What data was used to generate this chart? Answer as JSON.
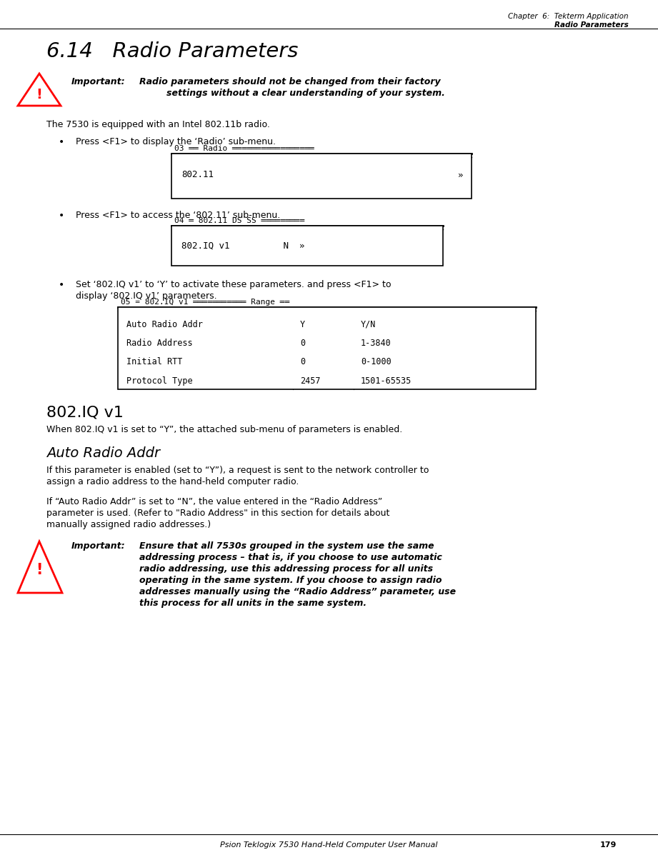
{
  "page_header_line1": "Chapter  6:  Tekterm Application",
  "page_header_line2": "Radio Parameters",
  "section_title": "6.14   Radio Parameters",
  "important1_label": "Important:",
  "important1_text1": "Radio parameters should not be changed from their factory",
  "important1_text2": "settings without a clear understanding of your system.",
  "body1": "The 7530 is equipped with an Intel 802.11b radio.",
  "bullet1": "Press <F1> to display the ‘Radio’ sub-menu.",
  "bullet2": "Press <F1> to access the ‘802.11’ sub-menu.",
  "bullet3_line1": "Set ‘802.IQ v1’ to ‘Y’ to activate these parameters. and press <F1> to",
  "bullet3_line2": "display ‘802.IQ v1’ parameters.",
  "box3_rows": [
    [
      "Auto Radio Addr",
      "Y",
      "Y/N"
    ],
    [
      "Radio Address",
      "0",
      "1-3840"
    ],
    [
      "Initial RTT",
      "0",
      "0-1000"
    ],
    [
      "Protocol Type",
      "2457",
      "1501-65535"
    ]
  ],
  "subsection1_title": "802.IQ v1",
  "subsection1_body": "When 802.IQ v1 is set to “Y”, the attached sub-menu of parameters is enabled.",
  "subsection2_title": "Auto Radio Addr",
  "subsection2_body1_line1": "If this parameter is enabled (set to “Y”), a request is sent to the network controller to",
  "subsection2_body1_line2": "assign a radio address to the hand-held computer radio.",
  "subsection2_body2_line1": "If “Auto Radio Addr” is set to “N”, the value entered in the “Radio Address”",
  "subsection2_body2_line2": "parameter is used. (Refer to \"Radio Address\" in this section for details about",
  "subsection2_body2_line3": "manually assigned radio addresses.)",
  "important2_label": "Important:",
  "important2_text_lines": [
    "Ensure that all 7530s grouped in the system use the same",
    "addressing process – that is, if you choose to use automatic",
    "radio addressing, use this addressing process for all units",
    "operating in the same system. If you choose to assign radio",
    "addresses manually using the “Radio Address” parameter, use",
    "this process for all units in the same system."
  ],
  "footer": "Psion Teklogix 7530 Hand-Held Computer User Manual",
  "page_number": "179",
  "bg_color": "#ffffff"
}
